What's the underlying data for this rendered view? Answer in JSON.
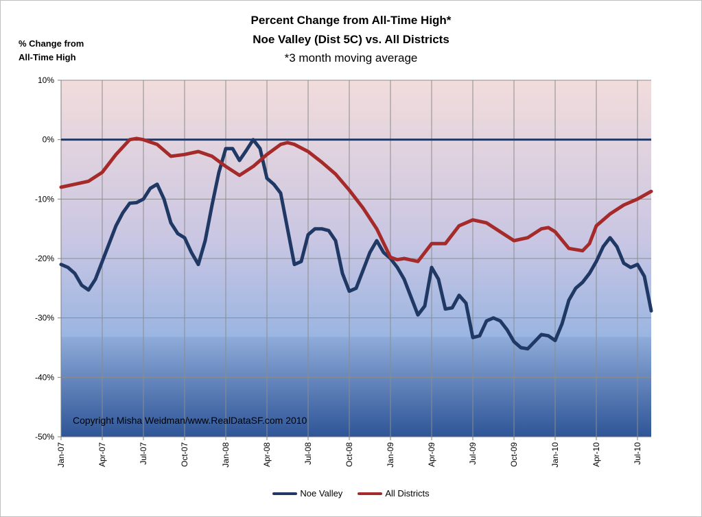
{
  "chart_data": {
    "type": "line",
    "title": "Percent Change from All-Time High*",
    "subtitle": "Noe Valley (Dist 5C) vs.  All Districts",
    "note": "*3 month moving average",
    "ylabel_line1": "% Change from",
    "ylabel_line2": "All-Time High",
    "ylim": [
      -50,
      10
    ],
    "yticks": [
      10,
      0,
      -10,
      -20,
      -30,
      -40,
      -50
    ],
    "ytick_labels": [
      "10%",
      "0%",
      "-10%",
      "-20%",
      "-30%",
      "-40%",
      "-50%"
    ],
    "x_ticks": [
      "Jan-07",
      "Apr-07",
      "Jul-07",
      "Oct-07",
      "Jan-08",
      "Apr-08",
      "Jul-08",
      "Oct-08",
      "Jan-09",
      "Apr-09",
      "Jul-09",
      "Oct-09",
      "Jan-10",
      "Apr-10",
      "Jul-10"
    ],
    "x_tick_months": [
      0,
      3,
      6,
      9,
      12,
      15,
      18,
      21,
      24,
      27,
      30,
      33,
      36,
      39,
      42
    ],
    "x_range": [
      0,
      43
    ],
    "grid": true,
    "reference_line": 0,
    "watermark": "Copyright Misha Weidman/www.RealDataSF.com 2010",
    "legend_position": "bottom",
    "series": [
      {
        "name": "Noe Valley",
        "color": "#1f3864",
        "points": [
          [
            0,
            -21.0
          ],
          [
            0.5,
            -21.5
          ],
          [
            1,
            -22.5
          ],
          [
            1.5,
            -24.5
          ],
          [
            2,
            -25.3
          ],
          [
            2.5,
            -23.5
          ],
          [
            3,
            -20.5
          ],
          [
            3.5,
            -17.5
          ],
          [
            4,
            -14.5
          ],
          [
            4.5,
            -12.3
          ],
          [
            5,
            -10.7
          ],
          [
            5.5,
            -10.6
          ],
          [
            6,
            -10.0
          ],
          [
            6.5,
            -8.2
          ],
          [
            7,
            -7.5
          ],
          [
            7.5,
            -10.0
          ],
          [
            8,
            -14.0
          ],
          [
            8.5,
            -15.8
          ],
          [
            9,
            -16.5
          ],
          [
            9.5,
            -19.0
          ],
          [
            10,
            -21.0
          ],
          [
            10.5,
            -17.0
          ],
          [
            11,
            -11.0
          ],
          [
            11.5,
            -5.5
          ],
          [
            12,
            -1.5
          ],
          [
            12.5,
            -1.5
          ],
          [
            13,
            -3.5
          ],
          [
            13.5,
            -1.8
          ],
          [
            14,
            0.0
          ],
          [
            14.5,
            -1.5
          ],
          [
            15,
            -6.5
          ],
          [
            15.5,
            -7.5
          ],
          [
            16,
            -9.0
          ],
          [
            16.5,
            -15.0
          ],
          [
            17,
            -21.0
          ],
          [
            17.5,
            -20.5
          ],
          [
            18,
            -16.0
          ],
          [
            18.5,
            -15.0
          ],
          [
            19,
            -15.0
          ],
          [
            19.5,
            -15.3
          ],
          [
            20,
            -17.0
          ],
          [
            20.5,
            -22.5
          ],
          [
            21,
            -25.5
          ],
          [
            21.5,
            -25.0
          ],
          [
            22,
            -22.0
          ],
          [
            22.5,
            -19.0
          ],
          [
            23,
            -17.0
          ],
          [
            23.5,
            -19.0
          ],
          [
            24,
            -20.0
          ],
          [
            24.5,
            -21.5
          ],
          [
            25,
            -23.5
          ],
          [
            25.5,
            -26.5
          ],
          [
            26,
            -29.5
          ],
          [
            26.5,
            -28.0
          ],
          [
            27,
            -21.5
          ],
          [
            27.5,
            -23.5
          ],
          [
            28,
            -28.5
          ],
          [
            28.5,
            -28.3
          ],
          [
            29,
            -26.2
          ],
          [
            29.5,
            -27.5
          ],
          [
            30,
            -33.3
          ],
          [
            30.5,
            -33.0
          ],
          [
            31,
            -30.5
          ],
          [
            31.5,
            -30.0
          ],
          [
            32,
            -30.5
          ],
          [
            32.5,
            -32.0
          ],
          [
            33,
            -34.0
          ],
          [
            33.5,
            -35.0
          ],
          [
            34,
            -35.2
          ],
          [
            34.5,
            -34.0
          ],
          [
            35,
            -32.8
          ],
          [
            35.5,
            -33.0
          ],
          [
            36,
            -33.8
          ],
          [
            36.5,
            -31.0
          ],
          [
            37,
            -27.0
          ],
          [
            37.5,
            -25.0
          ],
          [
            38,
            -24.0
          ],
          [
            38.5,
            -22.5
          ],
          [
            39,
            -20.5
          ],
          [
            39.5,
            -18.0
          ],
          [
            40,
            -16.5
          ],
          [
            40.5,
            -18.0
          ],
          [
            41,
            -20.8
          ],
          [
            41.5,
            -21.5
          ],
          [
            42,
            -21.0
          ],
          [
            42.5,
            -23.0
          ],
          [
            43,
            -28.8
          ]
        ]
      },
      {
        "name": "All Districts",
        "color": "#a52a2a",
        "points": [
          [
            0,
            -8.0
          ],
          [
            1,
            -7.5
          ],
          [
            2,
            -7.0
          ],
          [
            3,
            -5.5
          ],
          [
            4,
            -2.5
          ],
          [
            5,
            0.0
          ],
          [
            5.5,
            0.2
          ],
          [
            6,
            0.0
          ],
          [
            7,
            -0.8
          ],
          [
            8,
            -2.8
          ],
          [
            9,
            -2.5
          ],
          [
            10,
            -2.0
          ],
          [
            11,
            -2.8
          ],
          [
            12,
            -4.5
          ],
          [
            13,
            -6.0
          ],
          [
            14,
            -4.5
          ],
          [
            15,
            -2.5
          ],
          [
            16,
            -0.8
          ],
          [
            16.5,
            -0.5
          ],
          [
            17,
            -0.8
          ],
          [
            18,
            -2.0
          ],
          [
            19,
            -3.8
          ],
          [
            20,
            -5.8
          ],
          [
            21,
            -8.5
          ],
          [
            22,
            -11.5
          ],
          [
            23,
            -15.0
          ],
          [
            24,
            -19.8
          ],
          [
            24.5,
            -20.2
          ],
          [
            25,
            -20.0
          ],
          [
            26,
            -20.5
          ],
          [
            27,
            -17.5
          ],
          [
            28,
            -17.5
          ],
          [
            29,
            -14.5
          ],
          [
            30,
            -13.5
          ],
          [
            31,
            -14.0
          ],
          [
            32,
            -15.5
          ],
          [
            33,
            -17.0
          ],
          [
            34,
            -16.5
          ],
          [
            35,
            -15.0
          ],
          [
            35.5,
            -14.8
          ],
          [
            36,
            -15.5
          ],
          [
            37,
            -18.3
          ],
          [
            38,
            -18.7
          ],
          [
            38.5,
            -17.5
          ],
          [
            39,
            -14.5
          ],
          [
            40,
            -12.5
          ],
          [
            41,
            -11.0
          ],
          [
            42,
            -10.0
          ],
          [
            43,
            -8.7
          ]
        ]
      }
    ]
  }
}
